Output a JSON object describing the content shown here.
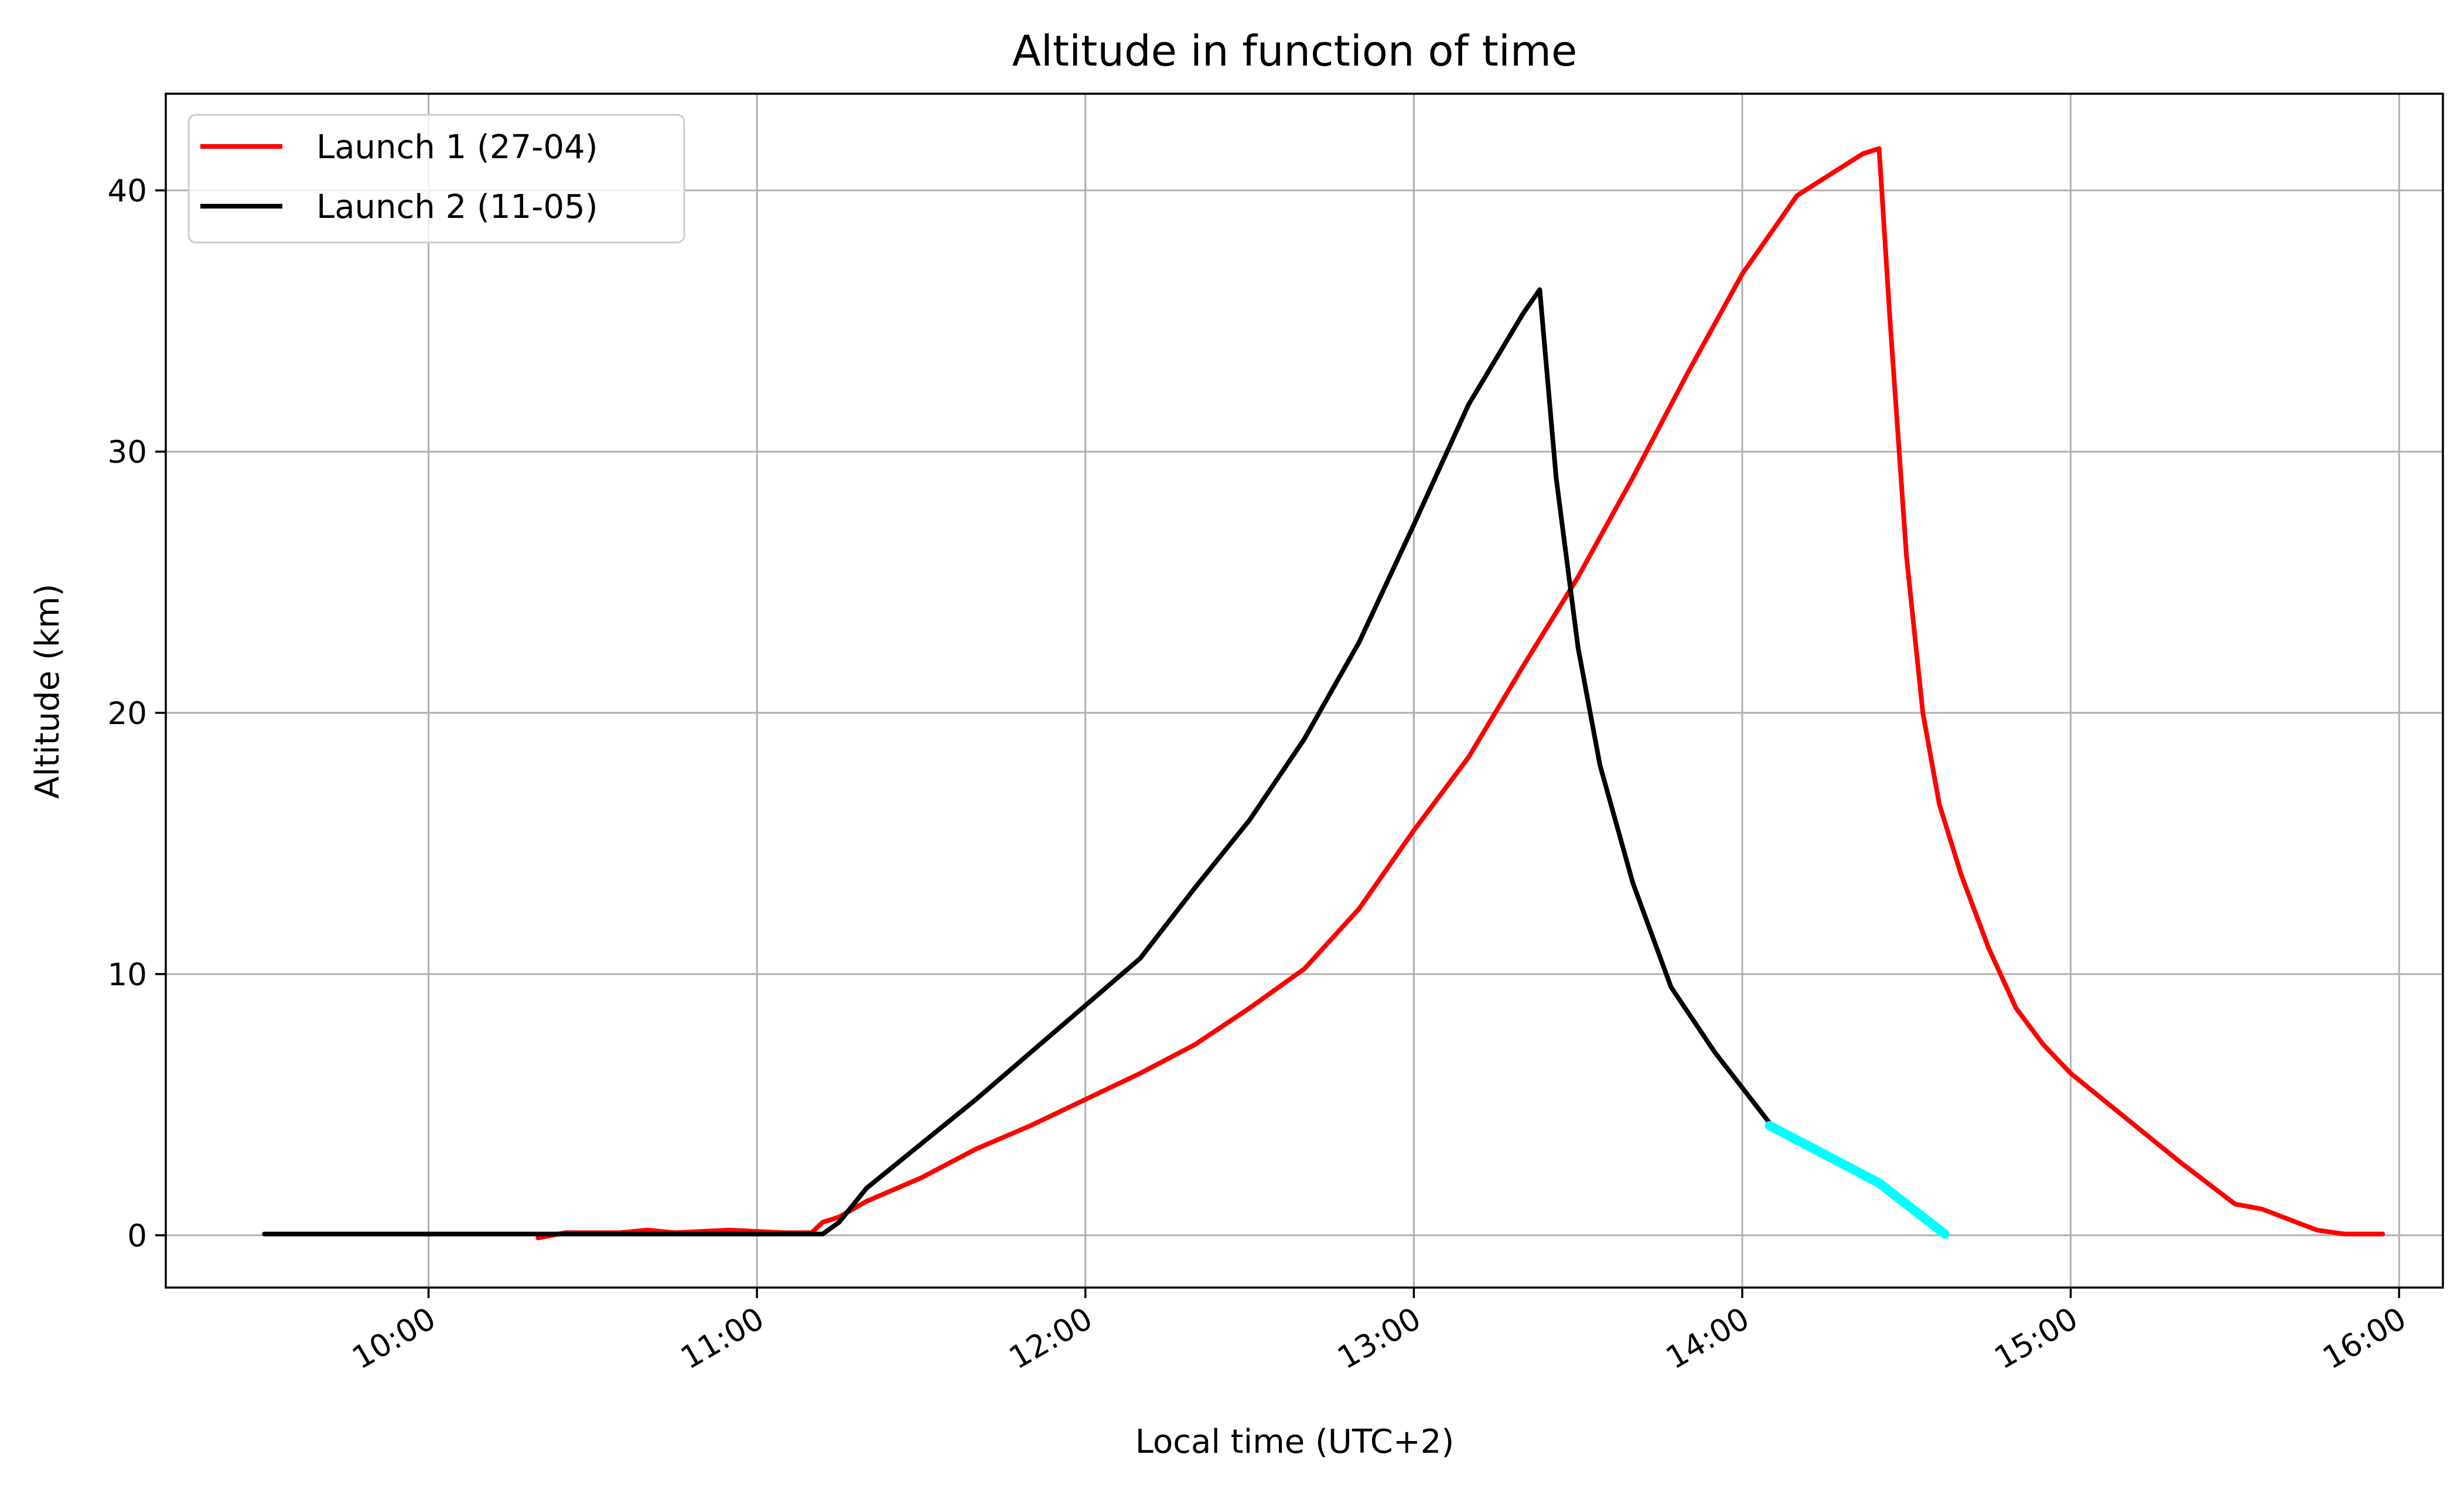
{
  "chart_data": {
    "type": "line",
    "title": "Altitude in function of time",
    "xlabel": "Local time (UTC+2)",
    "ylabel": "Altitude (km)",
    "xlim": [
      "09:12",
      "16:08"
    ],
    "ylim": [
      -2,
      43.7
    ],
    "x_ticks": [
      "10:00",
      "11:00",
      "12:00",
      "13:00",
      "14:00",
      "15:00",
      "16:00"
    ],
    "y_ticks": [
      0,
      10,
      20,
      30,
      40
    ],
    "grid": true,
    "legend_position": "top-left",
    "series": [
      {
        "name": "Launch 1 (27-04)",
        "color": "#ff0000",
        "points": [
          [
            "10:20",
            -0.1
          ],
          [
            "10:25",
            0.1
          ],
          [
            "10:35",
            0.1
          ],
          [
            "10:40",
            0.2
          ],
          [
            "10:45",
            0.1
          ],
          [
            "10:55",
            0.2
          ],
          [
            "11:05",
            0.1
          ],
          [
            "11:10",
            0.1
          ],
          [
            "11:12",
            0.5
          ],
          [
            "11:15",
            0.7
          ],
          [
            "11:20",
            1.3
          ],
          [
            "11:30",
            2.2
          ],
          [
            "11:40",
            3.3
          ],
          [
            "11:50",
            4.2
          ],
          [
            "12:00",
            5.2
          ],
          [
            "12:10",
            6.2
          ],
          [
            "12:20",
            7.3
          ],
          [
            "12:30",
            8.7
          ],
          [
            "12:40",
            10.2
          ],
          [
            "12:50",
            12.5
          ],
          [
            "13:00",
            15.5
          ],
          [
            "13:10",
            18.3
          ],
          [
            "13:20",
            21.8
          ],
          [
            "13:30",
            25.2
          ],
          [
            "13:40",
            29.0
          ],
          [
            "13:50",
            33.0
          ],
          [
            "14:00",
            36.8
          ],
          [
            "14:10",
            39.8
          ],
          [
            "14:22",
            41.4
          ],
          [
            "14:25",
            41.6
          ],
          [
            "14:27",
            35.0
          ],
          [
            "14:30",
            26.0
          ],
          [
            "14:33",
            20.0
          ],
          [
            "14:36",
            16.5
          ],
          [
            "14:40",
            13.8
          ],
          [
            "14:45",
            11.0
          ],
          [
            "14:50",
            8.7
          ],
          [
            "14:55",
            7.3
          ],
          [
            "15:00",
            6.2
          ],
          [
            "15:10",
            4.5
          ],
          [
            "15:20",
            2.8
          ],
          [
            "15:30",
            1.2
          ],
          [
            "15:35",
            1.0
          ],
          [
            "15:40",
            0.6
          ],
          [
            "15:45",
            0.2
          ],
          [
            "15:50",
            0.05
          ],
          [
            "15:57",
            0.05
          ]
        ]
      },
      {
        "name": "Launch 2 (11-05)",
        "color": "#000000",
        "points": [
          [
            "09:30",
            0.05
          ],
          [
            "10:30",
            0.05
          ],
          [
            "11:00",
            0.05
          ],
          [
            "11:12",
            0.05
          ],
          [
            "11:15",
            0.5
          ],
          [
            "11:20",
            1.8
          ],
          [
            "11:30",
            3.5
          ],
          [
            "11:40",
            5.2
          ],
          [
            "11:50",
            7.0
          ],
          [
            "12:00",
            8.8
          ],
          [
            "12:10",
            10.6
          ],
          [
            "12:20",
            13.3
          ],
          [
            "12:30",
            15.9
          ],
          [
            "12:40",
            19.0
          ],
          [
            "12:50",
            22.7
          ],
          [
            "13:00",
            27.2
          ],
          [
            "13:10",
            31.8
          ],
          [
            "13:20",
            35.3
          ],
          [
            "13:23",
            36.2
          ],
          [
            "13:26",
            29.0
          ],
          [
            "13:30",
            22.5
          ],
          [
            "13:34",
            18.0
          ],
          [
            "13:40",
            13.5
          ],
          [
            "13:47",
            9.5
          ],
          [
            "13:55",
            7.0
          ],
          [
            "14:05",
            4.3
          ]
        ]
      },
      {
        "color": "#00ffff",
        "points": [
          [
            "14:05",
            4.2
          ],
          [
            "14:25",
            2.0
          ],
          [
            "14:37",
            0.05
          ]
        ]
      }
    ]
  }
}
